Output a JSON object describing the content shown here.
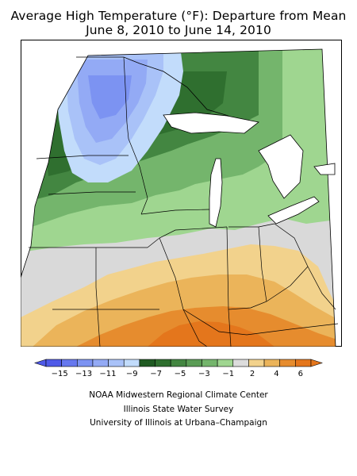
{
  "title": "Average High Temperature (°F): Departure from Mean",
  "subtitle": "June 8, 2010 to June 14, 2010",
  "legend": {
    "colors": [
      "#4f5ae8",
      "#6678ee",
      "#7c93f2",
      "#93aaf5",
      "#a9c2f8",
      "#c2dcfb",
      "#1f5a22",
      "#2f6f2f",
      "#438641",
      "#5a9c55",
      "#74b56c",
      "#9fd690",
      "#dcdcdc",
      "#f2d28c",
      "#ebb45a",
      "#e68c2e",
      "#e4761c"
    ],
    "tick_labels": [
      "−15",
      "−13",
      "−11",
      "−9",
      "−7",
      "−5",
      "−3",
      "−1",
      "2",
      "4",
      "6"
    ]
  },
  "credits": [
    "NOAA Midwestern Regional Climate Center",
    "Illinois State Water Survey",
    "University of Illinois at Urbana–Champaign"
  ]
}
